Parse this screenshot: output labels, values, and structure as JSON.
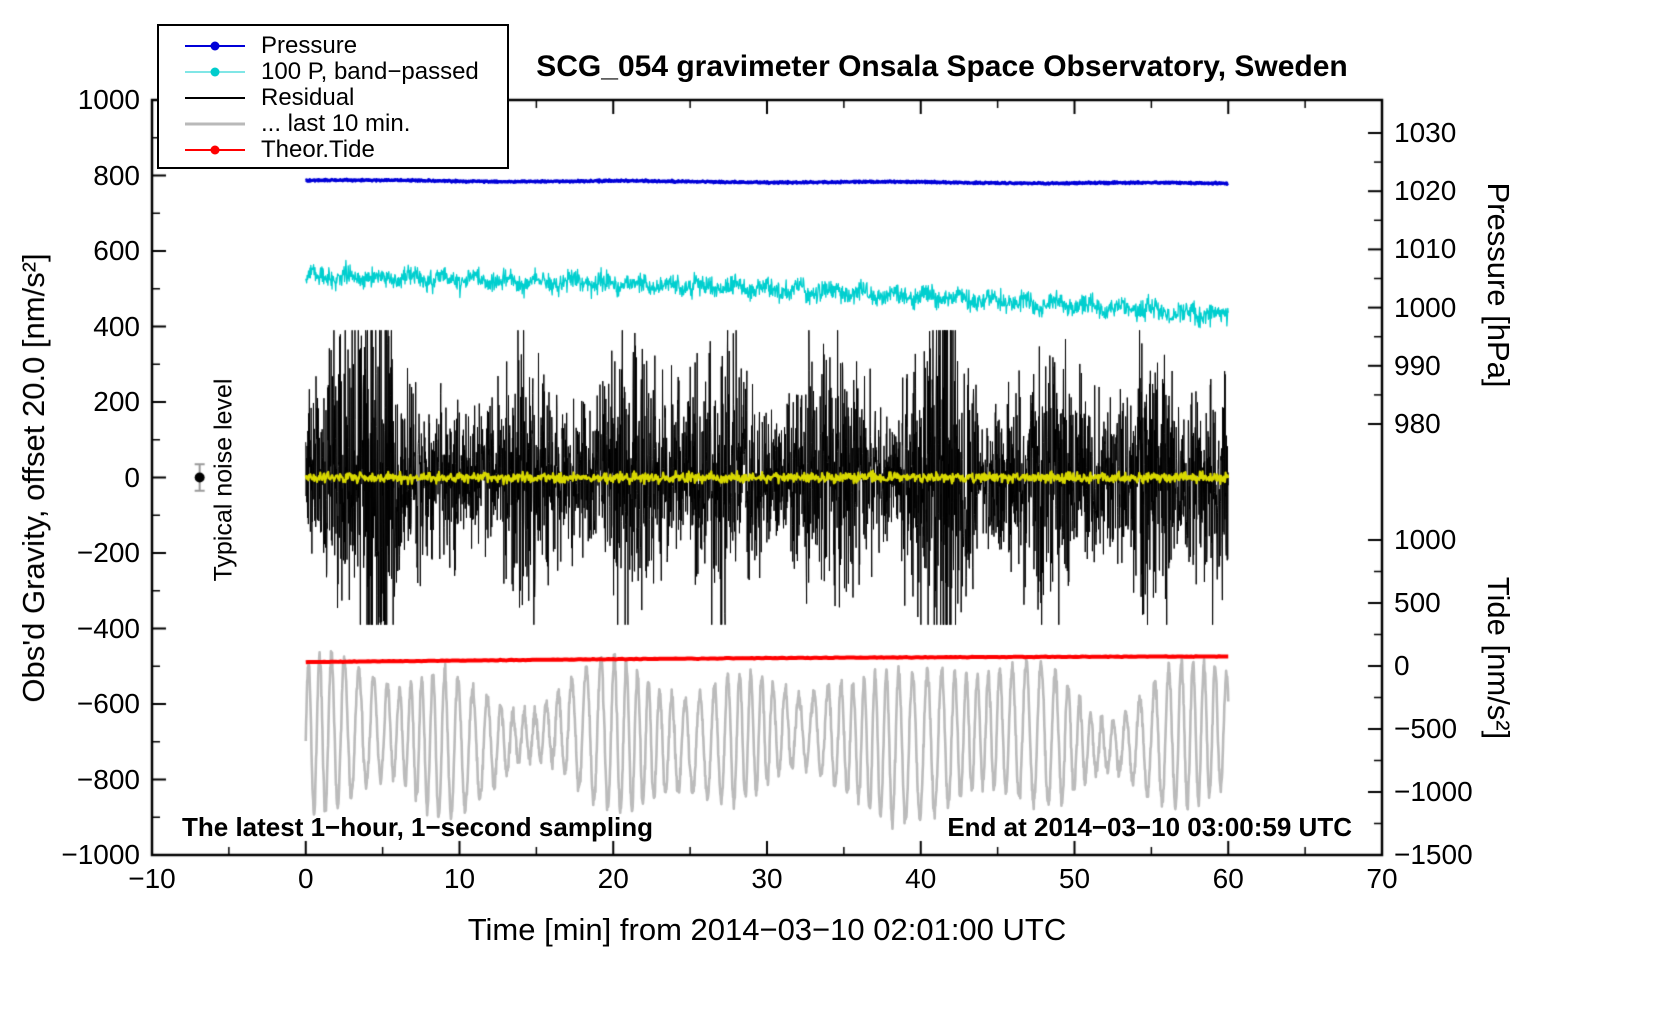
{
  "title": "SCG_054 gravimeter Onsala Space Observatory, Sweden",
  "legend": {
    "items": [
      {
        "label": "Pressure",
        "color": "#0000d8",
        "dot": true,
        "line_width": 2.5
      },
      {
        "label": "100 P, band−passed",
        "color": "#00cccc",
        "dot": true,
        "line_width": 1.5
      },
      {
        "label": "Residual",
        "color": "#000000",
        "dot": false,
        "line_width": 2.5
      },
      {
        "label": "... last 10 min.",
        "color": "#b9b9b9",
        "dot": false,
        "line_width": 3.5
      },
      {
        "label": "Theor.Tide",
        "color": "#ff0000",
        "dot": true,
        "line_width": 2.5
      }
    ]
  },
  "annotations": {
    "noise_level": "Typical noise level",
    "sampling": "The latest 1−hour, 1−second sampling",
    "end_time": "End at 2014−03−10 03:00:59 UTC"
  },
  "axes": {
    "x": {
      "label": "Time [min] from 2014−03−10 02:01:00 UTC",
      "min": -10,
      "max": 70,
      "major_ticks": [
        -10,
        0,
        10,
        20,
        30,
        40,
        50,
        60,
        70
      ],
      "minor_step": 5
    },
    "y_left": {
      "label": "Obs'd Gravity, offset 20.0 [nm/s²]",
      "min": -1000,
      "max": 1000,
      "major_ticks": [
        1000,
        800,
        600,
        400,
        200,
        0,
        -200,
        -400,
        -600,
        -800,
        -1000
      ],
      "minor_step": 100
    },
    "y_right_pressure": {
      "label": "Pressure [hPa]",
      "major_ticks": [
        1030,
        1020,
        1010,
        1000,
        990,
        980
      ],
      "minor_step": 5
    },
    "y_right_tide": {
      "label": "Tide [nm/s²]",
      "major_ticks": [
        1000,
        500,
        0,
        -500,
        -1000,
        -1500
      ],
      "minor_step": 250
    }
  },
  "chart_data": {
    "type": "line",
    "title": "SCG_054 gravimeter Onsala Space Observatory, Sweden",
    "xlabel": "Time [min] from 2014−03−10 02:01:00 UTC",
    "x_range": [
      -10,
      70
    ],
    "data_x_span": [
      0,
      60
    ],
    "grid": false,
    "legend_position": "top-left",
    "noise_marker": {
      "x": -6.9,
      "y": 0,
      "err": 35
    },
    "series": [
      {
        "name": "... last 10 min.",
        "kind": "osc",
        "axis": "left",
        "summary": {
          "center": -690,
          "envelope_min": -950,
          "envelope_max": -460,
          "oscillation_period_min": 0.82
        },
        "color": "#bbbbbb",
        "width": 2.6,
        "seed": 404,
        "n": 2600,
        "center": -690,
        "base_amp": 22,
        "base_period": 14,
        "a0": 135,
        "a1": 45,
        "p1": 9.3,
        "ph1": 1.0,
        "a2": 35,
        "p2": 19,
        "ph2": 0.4,
        "carrier_period": 0.82,
        "fm": 1.4,
        "fm_period": 7.3,
        "noise_sd": 10,
        "bursts": [
          {
            "t": 34.2,
            "amp": 60,
            "w": 1.4
          },
          {
            "t": 42.0,
            "amp": 45,
            "w": 1.2
          },
          {
            "t": 49.3,
            "amp": 40,
            "w": 1.4
          },
          {
            "t": 8.3,
            "amp": 35,
            "w": 1.2
          }
        ]
      },
      {
        "name": "Theor.Tide",
        "kind": "tide",
        "axis": "right_tide",
        "summary": {
          "tide_start_nms2": 30,
          "tide_end_nms2": 75,
          "left_axis_start": -489,
          "left_axis_end": -474
        },
        "color": "#ff0000",
        "width": 4,
        "seed": 505,
        "n": 400,
        "start": -489,
        "end": -474,
        "bow": 3,
        "noise_sd": 0.4
      },
      {
        "name": "100 P, band−passed",
        "kind": "band",
        "axis": "left",
        "summary": {
          "start": 531,
          "end": 428,
          "noise_amp": 25
        },
        "color": "#00cfcf",
        "width": 1.3,
        "seed": 202,
        "n": 2000,
        "start": 531,
        "end": 428,
        "curve": 1.7,
        "wig_amp": 9,
        "wig_period": 2.1,
        "noise_sd": 13
      },
      {
        "name": "Residual",
        "kind": "residual",
        "axis": "left",
        "summary": {
          "mean": 0,
          "typical_amp": 150,
          "max_amp": 380
        },
        "color": "#000000",
        "width": 1,
        "seed": 303,
        "n": 3600,
        "base_sd": 72,
        "mod_amp": 45,
        "mod_period": 13,
        "mod_phase": 0.7,
        "clamp": 390,
        "bursts": [
          {
            "t": 3.8,
            "amp": 150,
            "w": 1.1
          },
          {
            "t": 5.0,
            "amp": 140,
            "w": 0.7
          },
          {
            "t": 14.0,
            "amp": 50,
            "w": 1.5
          },
          {
            "t": 21.5,
            "amp": 70,
            "w": 1.8
          },
          {
            "t": 27.0,
            "amp": 60,
            "w": 1.5
          },
          {
            "t": 34.0,
            "amp": 70,
            "w": 2.0
          },
          {
            "t": 41.6,
            "amp": 170,
            "w": 1.3
          },
          {
            "t": 49.0,
            "amp": 80,
            "w": 1.6
          },
          {
            "t": 55.5,
            "amp": 80,
            "w": 1.2
          },
          {
            "t": 58.5,
            "amp": 70,
            "w": 0.9
          }
        ]
      },
      {
        "name": "Residual lowpass (yellow overlay)",
        "kind": "lowpass",
        "axis": "left",
        "summary": {
          "mean": 0,
          "amp": 10
        },
        "color": "#d8d800",
        "width": 2.2,
        "seed": 606,
        "n": 1400,
        "sd": 6.5
      },
      {
        "name": "Pressure",
        "kind": "trend",
        "axis": "right_pressure",
        "summary": {
          "start_hPa": 1021.2,
          "end_hPa": 1020.2,
          "left_axis_start": 787,
          "left_axis_end": 779
        },
        "color": "#0000d8",
        "width": 3.2,
        "seed": 101,
        "n": 1600,
        "start": 787,
        "end": 779,
        "slow_amp": 1.5,
        "slow_period": 17,
        "noise_sd": 1.1
      }
    ]
  }
}
